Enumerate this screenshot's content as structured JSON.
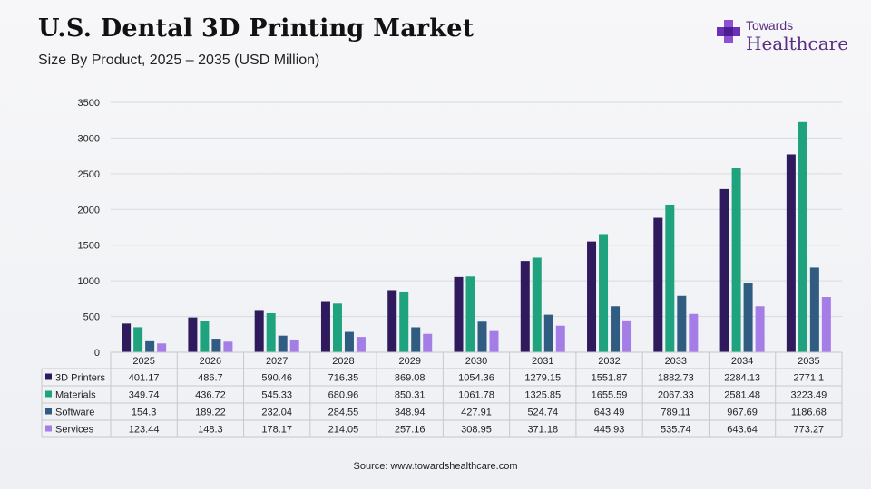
{
  "header": {
    "title": "U.S. Dental 3D Printing Market",
    "subtitle": "Size By Product, 2025 – 2035 (USD Million)"
  },
  "logo": {
    "top": "Towards",
    "main": "Healthcare"
  },
  "source": "Source: www.towardshealthcare.com",
  "colors": {
    "3D Printers": "#2e1a5c",
    "Materials": "#1fa37f",
    "Software": "#2f5c80",
    "Services": "#a57de6"
  },
  "chart_data": {
    "type": "bar",
    "categories": [
      "2025",
      "2026",
      "2027",
      "2028",
      "2029",
      "2030",
      "2031",
      "2032",
      "2033",
      "2034",
      "2035"
    ],
    "series": [
      {
        "name": "3D Printers",
        "values": [
          "401.17",
          "486.7",
          "590.46",
          "716.35",
          "869.08",
          "1054.36",
          "1279.15",
          "1551.87",
          "1882.73",
          "2284.13",
          "2771.1"
        ]
      },
      {
        "name": "Materials",
        "values": [
          "349.74",
          "436.72",
          "545.33",
          "680.96",
          "850.31",
          "1061.78",
          "1325.85",
          "1655.59",
          "2067.33",
          "2581.48",
          "3223.49"
        ]
      },
      {
        "name": "Software",
        "values": [
          "154.3",
          "189.22",
          "232.04",
          "284.55",
          "348.94",
          "427.91",
          "524.74",
          "643.49",
          "789.11",
          "967.69",
          "1186.68"
        ]
      },
      {
        "name": "Services",
        "values": [
          "123.44",
          "148.3",
          "178.17",
          "214.05",
          "257.16",
          "308.95",
          "371.18",
          "445.93",
          "535.74",
          "643.64",
          "773.27"
        ]
      }
    ],
    "yticks": [
      "0",
      "500",
      "1000",
      "1500",
      "2000",
      "2500",
      "3000",
      "3500"
    ],
    "ylim": [
      0,
      3500
    ],
    "grid": true,
    "data_table": true
  }
}
